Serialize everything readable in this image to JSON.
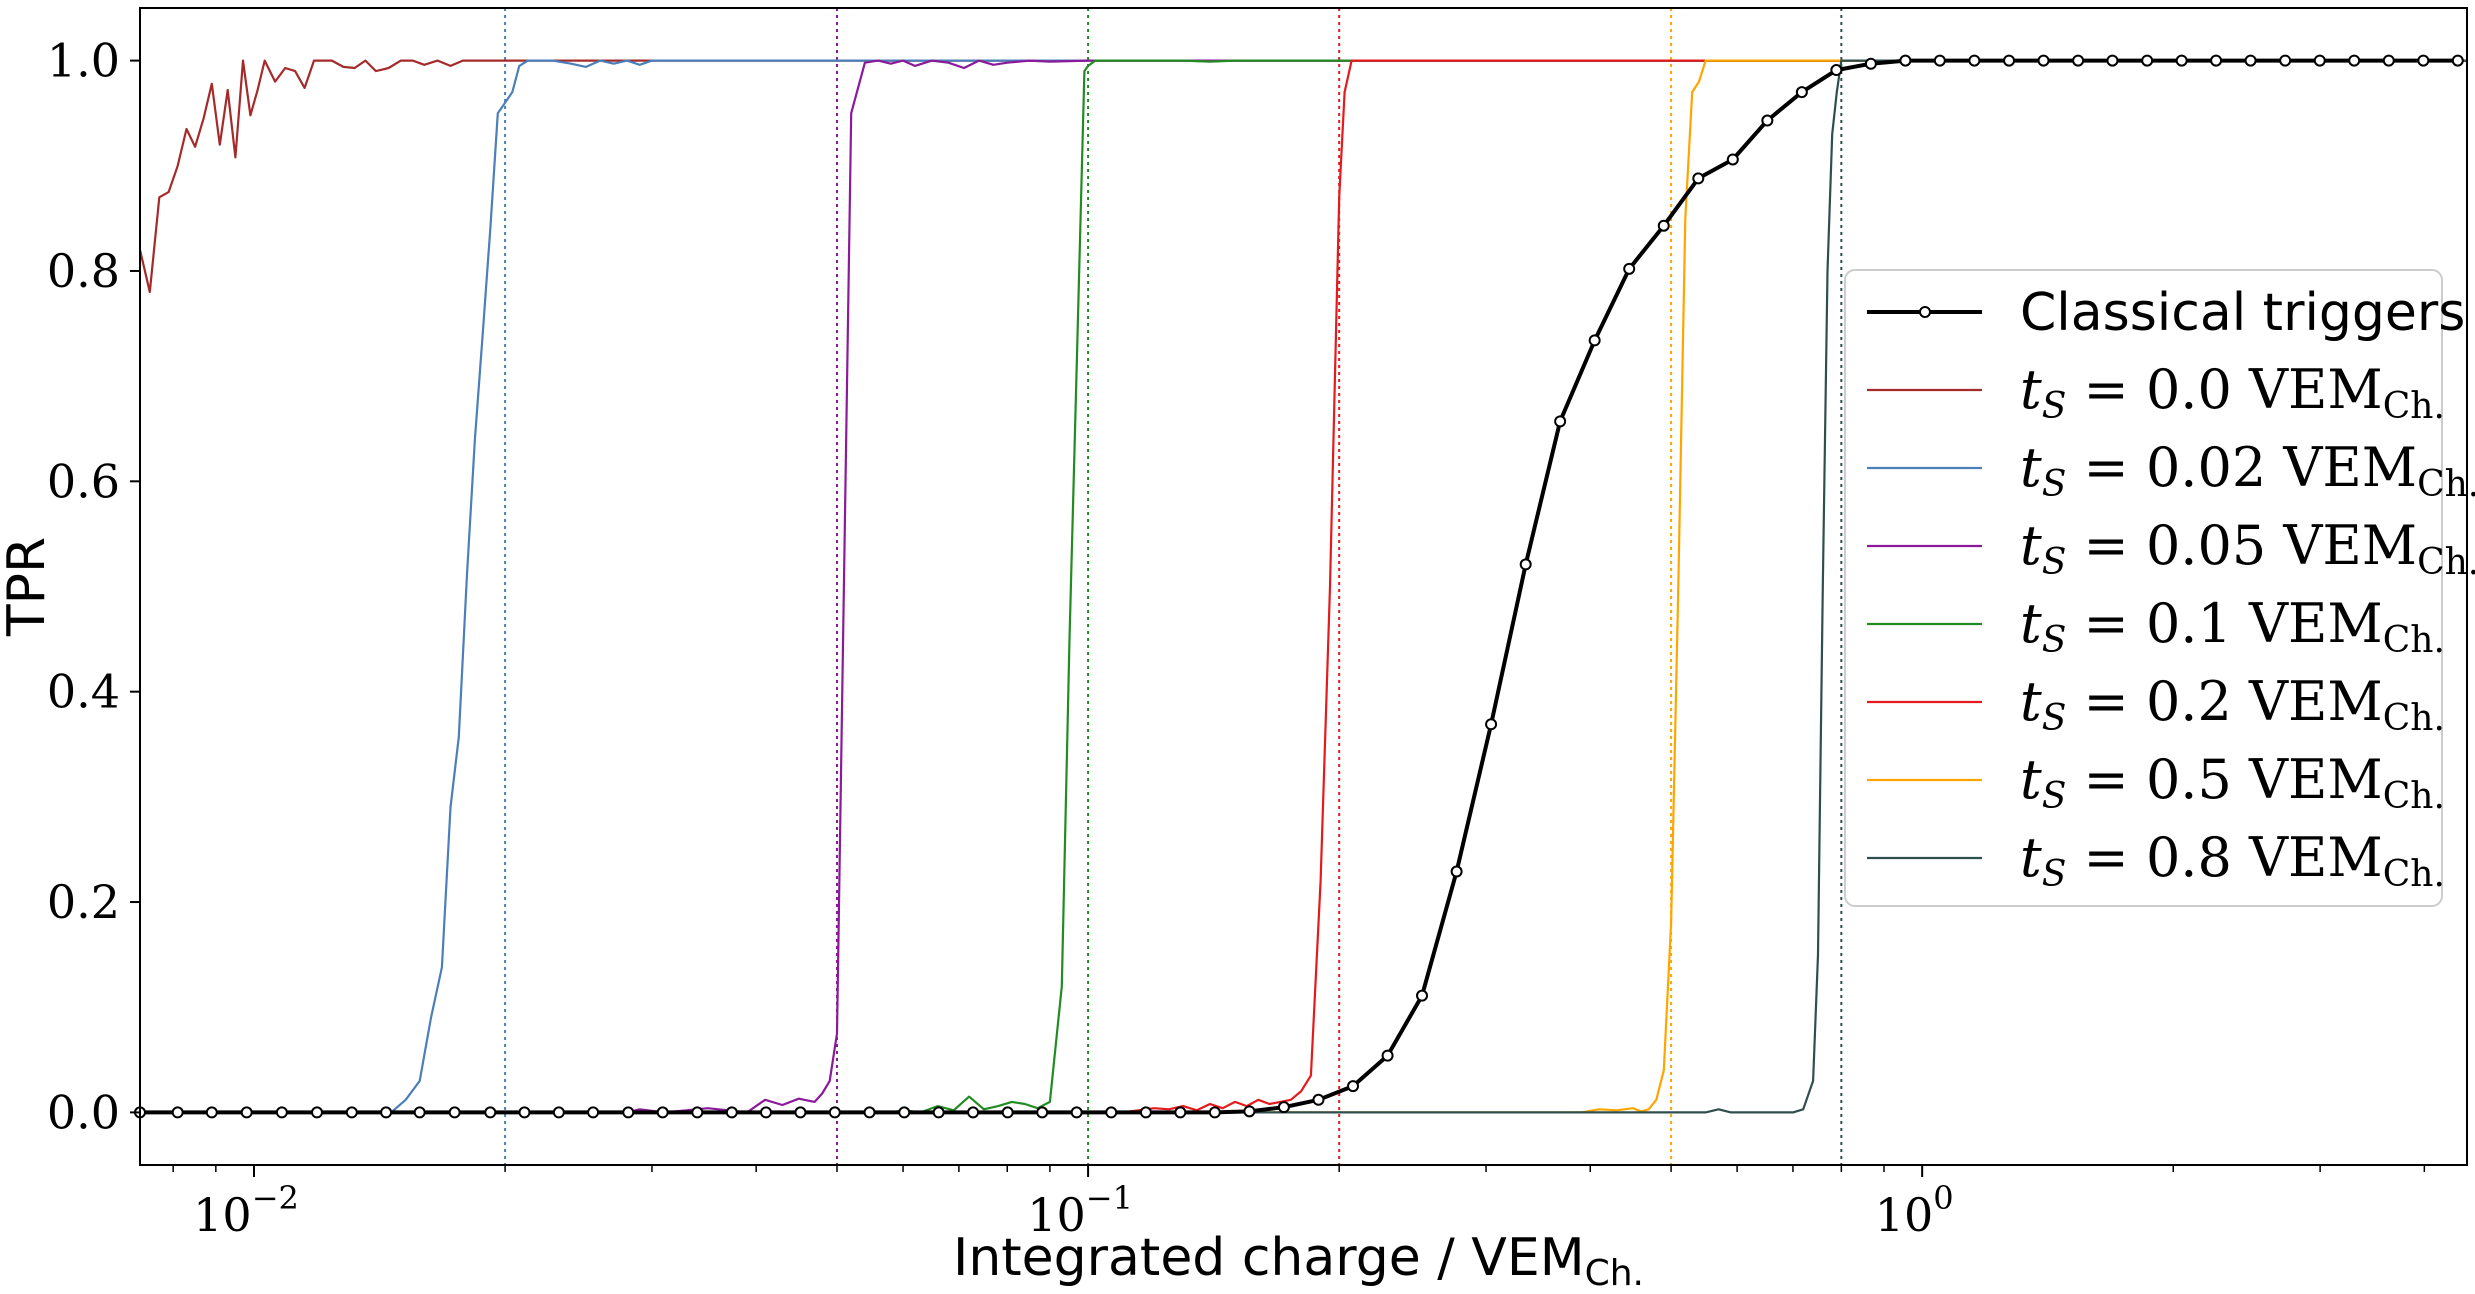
{
  "chart_data": {
    "type": "line",
    "xscale": "log",
    "xlim": [
      0.0073,
      4.5
    ],
    "ylim": [
      -0.05,
      1.05
    ],
    "xlabel": "Integrated charge / VEM",
    "xlabel_sub": "Ch.",
    "ylabel": "TPR",
    "grid": false,
    "legend_position": "center-right",
    "y_ticks": [
      {
        "value": 0.0,
        "label": "0.0"
      },
      {
        "value": 0.2,
        "label": "0.2"
      },
      {
        "value": 0.4,
        "label": "0.4"
      },
      {
        "value": 0.6,
        "label": "0.6"
      },
      {
        "value": 0.8,
        "label": "0.8"
      },
      {
        "value": 1.0,
        "label": "1.0"
      }
    ],
    "x_ticks": [
      {
        "value": 0.01,
        "base": "10",
        "exp": "−2"
      },
      {
        "value": 0.1,
        "base": "10",
        "exp": "−1"
      },
      {
        "value": 1.0,
        "base": "10",
        "exp": "0"
      }
    ],
    "thresholds": [
      {
        "value": 0.02,
        "color": "#4a7fb8"
      },
      {
        "value": 0.05,
        "color": "#8b1a9b"
      },
      {
        "value": 0.1,
        "color": "#228b22"
      },
      {
        "value": 0.2,
        "color": "#e41a1c"
      },
      {
        "value": 0.5,
        "color": "#ffa500"
      },
      {
        "value": 0.8,
        "color": "#2f4f4f"
      }
    ],
    "series": [
      {
        "name": "Classical triggers",
        "color": "#000000",
        "markers": true,
        "x": [
          0.0073,
          0.0081,
          0.0089,
          0.0098,
          0.0108,
          0.0119,
          0.0131,
          0.0144,
          0.0158,
          0.0174,
          0.0192,
          0.0211,
          0.0232,
          0.0255,
          0.0281,
          0.0309,
          0.034,
          0.0374,
          0.0411,
          0.0452,
          0.0497,
          0.0547,
          0.0602,
          0.0662,
          0.0728,
          0.0801,
          0.0881,
          0.0969,
          0.1066,
          0.1173,
          0.129,
          0.1419,
          0.1561,
          0.1717,
          0.1889,
          0.2078,
          0.2286,
          0.2514,
          0.2766,
          0.3042,
          0.3347,
          0.3681,
          0.4049,
          0.4454,
          0.49,
          0.539,
          0.5929,
          0.6522,
          0.7174,
          0.7891,
          0.868,
          0.9548,
          1.05,
          1.155,
          1.271,
          1.398,
          1.538,
          1.691,
          1.861,
          2.047,
          2.251,
          2.476,
          2.724,
          2.997,
          3.296,
          3.626,
          3.989,
          4.387
        ],
        "y": [
          0,
          0,
          0,
          0,
          0,
          0,
          0,
          0,
          0,
          0,
          0,
          0,
          0,
          0,
          0,
          0,
          0,
          0,
          0,
          0,
          0,
          0,
          0,
          0,
          0,
          0,
          0,
          0,
          0,
          0,
          0,
          0,
          0.001,
          0.005,
          0.012,
          0.025,
          0.054,
          0.111,
          0.229,
          0.369,
          0.521,
          0.657,
          0.734,
          0.802,
          0.843,
          0.888,
          0.906,
          0.943,
          0.97,
          0.991,
          0.997,
          1.0,
          1.0,
          1.0,
          1.0,
          1.0,
          1.0,
          1.0,
          1.0,
          1.0,
          1.0,
          1.0,
          1.0,
          1.0,
          1.0,
          1.0,
          1.0,
          1.0
        ]
      },
      {
        "name": "t_S = 0.0 VEM_Ch.",
        "legend_value": "0.0",
        "color": "#a52a2a",
        "markers": false,
        "x": [
          0.0073,
          0.0075,
          0.0077,
          0.0079,
          0.0081,
          0.0083,
          0.0085,
          0.0087,
          0.0089,
          0.0091,
          0.0093,
          0.0095,
          0.0097,
          0.0099,
          0.0101,
          0.0103,
          0.0106,
          0.0109,
          0.0112,
          0.0115,
          0.0118,
          0.0121,
          0.0124,
          0.0128,
          0.0132,
          0.0136,
          0.014,
          0.0145,
          0.015,
          0.0155,
          0.016,
          0.0166,
          0.0172,
          0.0178,
          0.0185,
          0.0192,
          0.02,
          0.021,
          0.025,
          0.03,
          0.04,
          4.5
        ],
        "y": [
          0.82,
          0.78,
          0.87,
          0.875,
          0.9,
          0.935,
          0.918,
          0.945,
          0.978,
          0.92,
          0.972,
          0.908,
          1.0,
          0.948,
          0.972,
          1.0,
          0.98,
          0.993,
          0.99,
          0.974,
          1.0,
          1.0,
          1.0,
          0.994,
          0.993,
          1.0,
          0.99,
          0.993,
          1.0,
          1.0,
          0.996,
          1.0,
          0.995,
          1.0,
          1.0,
          1.0,
          1.0,
          1.0,
          1.0,
          1.0,
          1.0,
          1.0
        ]
      },
      {
        "name": "t_S = 0.02 VEM_Ch.",
        "legend_value": "0.02",
        "color": "#4a7fb8",
        "markers": false,
        "x": [
          0.0073,
          0.0146,
          0.0152,
          0.0158,
          0.0163,
          0.0168,
          0.0172,
          0.0176,
          0.018,
          0.0184,
          0.0188,
          0.0192,
          0.0196,
          0.02,
          0.0204,
          0.0208,
          0.0213,
          0.0218,
          0.0223,
          0.0228,
          0.024,
          0.025,
          0.026,
          0.027,
          0.028,
          0.029,
          0.03,
          0.033,
          4.5
        ],
        "y": [
          0,
          0,
          0.012,
          0.03,
          0.09,
          0.138,
          0.29,
          0.357,
          0.51,
          0.64,
          0.74,
          0.84,
          0.95,
          0.96,
          0.97,
          0.995,
          1.0,
          1.0,
          1.0,
          1.0,
          0.997,
          0.994,
          1.0,
          0.997,
          1.0,
          0.996,
          1.0,
          1.0,
          1.0
        ]
      },
      {
        "name": "t_S = 0.05 VEM_Ch.",
        "legend_value": "0.05",
        "color": "#8b1a9b",
        "markers": false,
        "x": [
          0.0073,
          0.028,
          0.029,
          0.031,
          0.033,
          0.035,
          0.037,
          0.039,
          0.041,
          0.043,
          0.045,
          0.047,
          0.048,
          0.049,
          0.05,
          0.052,
          0.054,
          0.056,
          0.058,
          0.06,
          0.062,
          0.065,
          0.068,
          0.071,
          0.074,
          0.077,
          0.08,
          0.085,
          0.09,
          0.1,
          4.5
        ],
        "y": [
          0,
          0,
          0.003,
          0,
          0.002,
          0.004,
          0.002,
          0,
          0.012,
          0.007,
          0.013,
          0.01,
          0.018,
          0.03,
          0.075,
          0.95,
          0.998,
          1.0,
          0.997,
          1.0,
          0.995,
          1.0,
          0.998,
          0.993,
          1.0,
          0.996,
          0.998,
          1.0,
          0.999,
          1.0,
          1.0
        ]
      },
      {
        "name": "t_S = 0.1 VEM_Ch.",
        "legend_value": "0.1",
        "color": "#228b22",
        "markers": false,
        "x": [
          0.0073,
          0.058,
          0.06,
          0.063,
          0.066,
          0.069,
          0.072,
          0.075,
          0.078,
          0.081,
          0.084,
          0.087,
          0.09,
          0.093,
          0.095,
          0.097,
          0.099,
          0.1,
          0.102,
          0.105,
          0.11,
          0.12,
          0.13,
          0.14,
          0.15,
          4.5
        ],
        "y": [
          0,
          0,
          0.002,
          0,
          0.006,
          0.002,
          0.015,
          0.003,
          0.006,
          0.01,
          0.008,
          0.004,
          0.01,
          0.12,
          0.45,
          0.72,
          0.99,
          0.995,
          1.0,
          1.0,
          1.0,
          1.0,
          1.0,
          0.999,
          1.0,
          1.0
        ]
      },
      {
        "name": "t_S = 0.2 VEM_Ch.",
        "legend_value": "0.2",
        "color": "#e41a1c",
        "markers": false,
        "x": [
          0.0073,
          0.11,
          0.115,
          0.12,
          0.125,
          0.13,
          0.135,
          0.14,
          0.145,
          0.15,
          0.155,
          0.16,
          0.165,
          0.17,
          0.175,
          0.18,
          0.185,
          0.19,
          0.195,
          0.2,
          0.203,
          0.207,
          0.212,
          0.22,
          0.25,
          4.5
        ],
        "y": [
          0,
          0,
          0.002,
          0.004,
          0.003,
          0.006,
          0.002,
          0.008,
          0.004,
          0.01,
          0.006,
          0.012,
          0.008,
          0.01,
          0.012,
          0.02,
          0.035,
          0.22,
          0.5,
          0.87,
          0.97,
          1.0,
          1.0,
          1.0,
          1.0,
          1.0
        ]
      },
      {
        "name": "t_S = 0.5 VEM_Ch.",
        "legend_value": "0.5",
        "color": "#ffa500",
        "markers": false,
        "x": [
          0.0073,
          0.39,
          0.41,
          0.43,
          0.45,
          0.46,
          0.47,
          0.48,
          0.49,
          0.5,
          0.51,
          0.52,
          0.53,
          0.54,
          0.55,
          0.6,
          4.5
        ],
        "y": [
          0,
          0,
          0.003,
          0.002,
          0.004,
          0.001,
          0.003,
          0.012,
          0.04,
          0.18,
          0.5,
          0.85,
          0.97,
          0.98,
          1.0,
          1.0,
          1.0
        ]
      },
      {
        "name": "t_S = 0.8 VEM_Ch.",
        "legend_value": "0.8",
        "color": "#2f4f4f",
        "markers": false,
        "x": [
          0.0073,
          0.55,
          0.57,
          0.59,
          0.7,
          0.72,
          0.74,
          0.75,
          0.76,
          0.77,
          0.78,
          0.79,
          0.8,
          0.82,
          0.85,
          4.5
        ],
        "y": [
          0,
          0,
          0.003,
          0,
          0,
          0.003,
          0.03,
          0.15,
          0.5,
          0.8,
          0.93,
          0.97,
          1.0,
          1.0,
          1.0,
          1.0
        ]
      }
    ]
  }
}
